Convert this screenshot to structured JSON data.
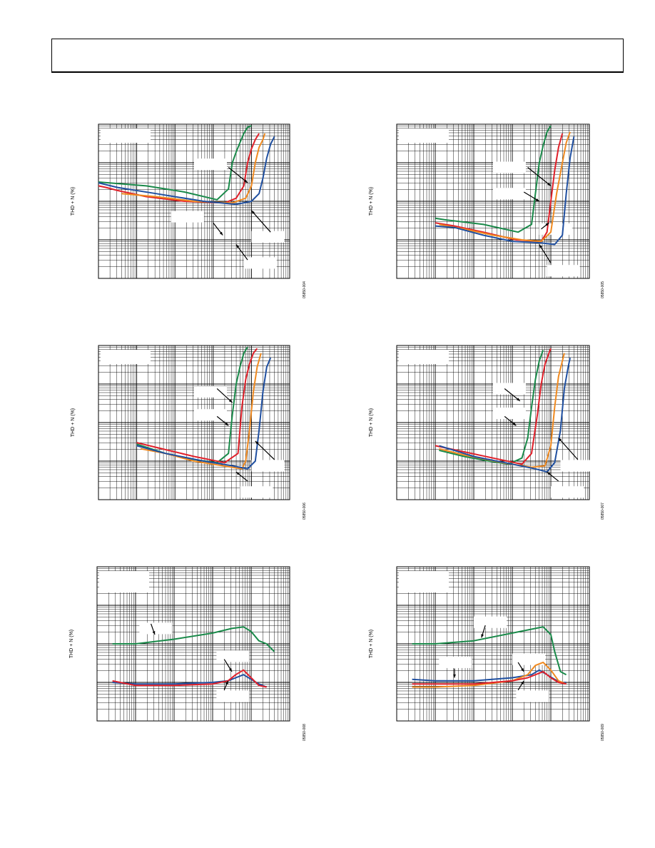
{
  "page": {
    "header": {
      "title": ""
    }
  },
  "colors": {
    "green": "#1a8a4a",
    "red": "#e0202a",
    "orange": "#f08a20",
    "blue": "#1f4fa0",
    "grid": "#000000"
  },
  "chart_data": [
    {
      "type": "line",
      "ylabel": "THD + N (%)",
      "fig_id": "05850-004",
      "xlog": true,
      "ylog": true,
      "grid": true,
      "series": [
        {
          "color": "green",
          "x": [
            0,
            0.25,
            0.45,
            0.62,
            0.68,
            0.7,
            0.72,
            0.74,
            0.76,
            0.78,
            0.8
          ],
          "y": [
            0.625,
            0.6,
            0.56,
            0.51,
            0.58,
            0.75,
            0.82,
            0.88,
            0.94,
            0.98,
            0.99
          ]
        },
        {
          "color": "red",
          "x": [
            0,
            0.04,
            0.1,
            0.25,
            0.45,
            0.66,
            0.72,
            0.76,
            0.78,
            0.8,
            0.82,
            0.84
          ],
          "y": [
            0.6,
            0.59,
            0.57,
            0.53,
            0.5,
            0.49,
            0.52,
            0.6,
            0.75,
            0.84,
            0.9,
            0.94
          ]
        },
        {
          "color": "orange",
          "x": [
            0.12,
            0.3,
            0.5,
            0.7,
            0.77,
            0.8,
            0.82,
            0.84,
            0.86,
            0.87
          ],
          "y": [
            0.55,
            0.53,
            0.5,
            0.49,
            0.52,
            0.6,
            0.75,
            0.85,
            0.9,
            0.94
          ]
        },
        {
          "color": "blue",
          "x": [
            0,
            0.1,
            0.3,
            0.55,
            0.72,
            0.8,
            0.84,
            0.86,
            0.88,
            0.9,
            0.92
          ],
          "y": [
            0.62,
            0.59,
            0.55,
            0.5,
            0.48,
            0.5,
            0.55,
            0.65,
            0.78,
            0.87,
            0.92
          ]
        }
      ],
      "label_boxes": [
        [
          0.5,
          0.74
        ],
        [
          0.38,
          0.4
        ],
        [
          0.8,
          0.27
        ],
        [
          0.76,
          0.1
        ]
      ],
      "arrows": [
        [
          0.68,
          0.72,
          0.78,
          0.62
        ],
        [
          0.6,
          0.36,
          0.65,
          0.28
        ],
        [
          0.9,
          0.3,
          0.8,
          0.44
        ],
        [
          0.78,
          0.12,
          0.72,
          0.22
        ]
      ]
    },
    {
      "type": "line",
      "ylabel": "THD + N (%)",
      "fig_id": "05850-005",
      "xlog": true,
      "ylog": true,
      "grid": true,
      "series": [
        {
          "color": "green",
          "x": [
            0.2,
            0.25,
            0.45,
            0.63,
            0.7,
            0.72,
            0.74,
            0.76,
            0.78,
            0.8
          ],
          "y": [
            0.39,
            0.38,
            0.35,
            0.3,
            0.35,
            0.55,
            0.75,
            0.86,
            0.95,
            0.99
          ]
        },
        {
          "color": "red",
          "x": [
            0.2,
            0.3,
            0.45,
            0.62,
            0.75,
            0.78,
            0.8,
            0.82,
            0.84,
            0.86
          ],
          "y": [
            0.36,
            0.34,
            0.3,
            0.25,
            0.24,
            0.3,
            0.5,
            0.7,
            0.85,
            0.94
          ]
        },
        {
          "color": "orange",
          "x": [
            0.22,
            0.35,
            0.5,
            0.65,
            0.75,
            0.8,
            0.83,
            0.86,
            0.88,
            0.9
          ],
          "y": [
            0.35,
            0.32,
            0.28,
            0.25,
            0.24,
            0.3,
            0.55,
            0.75,
            0.88,
            0.95
          ]
        },
        {
          "color": "blue",
          "x": [
            0.2,
            0.3,
            0.45,
            0.6,
            0.75,
            0.82,
            0.86,
            0.88,
            0.9,
            0.92
          ],
          "y": [
            0.34,
            0.33,
            0.28,
            0.24,
            0.23,
            0.22,
            0.28,
            0.55,
            0.78,
            0.92
          ]
        }
      ],
      "label_boxes": [
        [
          0.5,
          0.72
        ],
        [
          0.5,
          0.55
        ],
        [
          0.78,
          0.05
        ],
        [
          0.74,
          0.32
        ]
      ],
      "arrows": [
        [
          0.68,
          0.72,
          0.8,
          0.6
        ],
        [
          0.66,
          0.56,
          0.74,
          0.5
        ],
        [
          0.75,
          0.32,
          0.79,
          0.36
        ],
        [
          0.8,
          0.1,
          0.74,
          0.22
        ]
      ]
    },
    {
      "type": "line",
      "ylabel": "THD + N (%)",
      "fig_id": "05850-006",
      "xlog": true,
      "ylog": true,
      "grid": true,
      "series": [
        {
          "color": "green",
          "x": [
            0.2,
            0.35,
            0.5,
            0.62,
            0.68,
            0.7,
            0.72,
            0.74,
            0.76,
            0.78
          ],
          "y": [
            0.36,
            0.3,
            0.26,
            0.24,
            0.3,
            0.55,
            0.75,
            0.86,
            0.95,
            0.99
          ]
        },
        {
          "color": "red",
          "x": [
            0.2,
            0.3,
            0.5,
            0.66,
            0.73,
            0.75,
            0.77,
            0.79,
            0.81,
            0.83
          ],
          "y": [
            0.37,
            0.34,
            0.28,
            0.24,
            0.3,
            0.6,
            0.78,
            0.88,
            0.95,
            0.98
          ]
        },
        {
          "color": "orange",
          "x": [
            0.22,
            0.35,
            0.5,
            0.65,
            0.75,
            0.77,
            0.79,
            0.81,
            0.83,
            0.85
          ],
          "y": [
            0.33,
            0.3,
            0.25,
            0.22,
            0.2,
            0.25,
            0.45,
            0.7,
            0.86,
            0.95
          ]
        },
        {
          "color": "blue",
          "x": [
            0.2,
            0.35,
            0.55,
            0.7,
            0.78,
            0.82,
            0.84,
            0.86,
            0.88,
            0.9
          ],
          "y": [
            0.35,
            0.3,
            0.25,
            0.22,
            0.2,
            0.25,
            0.45,
            0.7,
            0.86,
            0.92
          ]
        }
      ],
      "label_boxes": [
        [
          0.5,
          0.7
        ],
        [
          0.5,
          0.55
        ],
        [
          0.8,
          0.22
        ],
        [
          0.74,
          0.05
        ]
      ],
      "arrows": [
        [
          0.62,
          0.72,
          0.7,
          0.63
        ],
        [
          0.62,
          0.54,
          0.68,
          0.48
        ],
        [
          0.92,
          0.26,
          0.82,
          0.38
        ],
        [
          0.78,
          0.12,
          0.72,
          0.18
        ]
      ]
    },
    {
      "type": "line",
      "ylabel": "THD + N (%)",
      "fig_id": "05850-007",
      "xlog": true,
      "ylog": true,
      "grid": true,
      "series": [
        {
          "color": "green",
          "x": [
            0.22,
            0.35,
            0.48,
            0.58,
            0.65,
            0.68,
            0.7,
            0.72,
            0.74,
            0.76
          ],
          "y": [
            0.32,
            0.28,
            0.25,
            0.23,
            0.27,
            0.4,
            0.6,
            0.78,
            0.9,
            0.97
          ]
        },
        {
          "color": "red",
          "x": [
            0.2,
            0.35,
            0.5,
            0.65,
            0.7,
            0.73,
            0.75,
            0.77,
            0.79,
            0.8
          ],
          "y": [
            0.35,
            0.31,
            0.27,
            0.23,
            0.3,
            0.55,
            0.75,
            0.88,
            0.95,
            0.98
          ]
        },
        {
          "color": "orange",
          "x": [
            0.22,
            0.35,
            0.55,
            0.7,
            0.77,
            0.8,
            0.82,
            0.84,
            0.86,
            0.87
          ],
          "y": [
            0.33,
            0.29,
            0.24,
            0.21,
            0.22,
            0.35,
            0.6,
            0.8,
            0.9,
            0.95
          ]
        },
        {
          "color": "blue",
          "x": [
            0.22,
            0.4,
            0.6,
            0.72,
            0.78,
            0.82,
            0.85,
            0.87,
            0.89,
            0.9
          ],
          "y": [
            0.35,
            0.28,
            0.23,
            0.2,
            0.18,
            0.24,
            0.45,
            0.72,
            0.86,
            0.92
          ]
        }
      ],
      "label_boxes": [
        [
          0.5,
          0.72
        ],
        [
          0.5,
          0.56
        ],
        [
          0.85,
          0.22
        ],
        [
          0.8,
          0.05
        ]
      ],
      "arrows": [
        [
          0.56,
          0.72,
          0.64,
          0.64
        ],
        [
          0.56,
          0.54,
          0.62,
          0.48
        ],
        [
          0.94,
          0.26,
          0.84,
          0.4
        ],
        [
          0.84,
          0.12,
          0.78,
          0.18
        ]
      ]
    },
    {
      "type": "line",
      "ylabel": "THD + N (%)",
      "fig_id": "05850-008",
      "xlog": true,
      "ylog": true,
      "grid": true,
      "series": [
        {
          "color": "green",
          "x": [
            0.08,
            0.2,
            0.4,
            0.6,
            0.7,
            0.76,
            0.8,
            0.84,
            0.88,
            0.92
          ],
          "y": [
            0.5,
            0.5,
            0.53,
            0.57,
            0.6,
            0.61,
            0.58,
            0.52,
            0.5,
            0.45
          ]
        },
        {
          "color": "blue",
          "x": [
            0.08,
            0.2,
            0.4,
            0.6,
            0.68,
            0.72,
            0.76,
            0.8,
            0.84,
            0.88
          ],
          "y": [
            0.25,
            0.24,
            0.24,
            0.25,
            0.26,
            0.28,
            0.3,
            0.27,
            0.24,
            0.22
          ]
        },
        {
          "color": "red",
          "x": [
            0.08,
            0.2,
            0.4,
            0.6,
            0.68,
            0.72,
            0.76,
            0.8,
            0.84,
            0.88
          ],
          "y": [
            0.26,
            0.23,
            0.23,
            0.24,
            0.26,
            0.3,
            0.33,
            0.28,
            0.23,
            0.22
          ]
        }
      ],
      "label_boxes": [
        [
          0.22,
          0.6
        ],
        [
          0.62,
          0.42
        ],
        [
          0.62,
          0.16
        ]
      ],
      "arrows": [
        [
          0.28,
          0.63,
          0.3,
          0.56
        ],
        [
          0.66,
          0.4,
          0.7,
          0.32
        ],
        [
          0.66,
          0.2,
          0.68,
          0.26
        ]
      ]
    },
    {
      "type": "line",
      "ylabel": "THD + N (%)",
      "fig_id": "05850-009",
      "xlog": true,
      "ylog": true,
      "grid": true,
      "series": [
        {
          "color": "green",
          "x": [
            0.08,
            0.2,
            0.4,
            0.6,
            0.72,
            0.76,
            0.8,
            0.82,
            0.85,
            0.88
          ],
          "y": [
            0.5,
            0.5,
            0.52,
            0.57,
            0.6,
            0.61,
            0.56,
            0.45,
            0.32,
            0.3
          ]
        },
        {
          "color": "blue",
          "x": [
            0.08,
            0.2,
            0.4,
            0.6,
            0.7,
            0.74,
            0.78,
            0.82,
            0.85,
            0.88
          ],
          "y": [
            0.27,
            0.26,
            0.26,
            0.28,
            0.3,
            0.33,
            0.3,
            0.27,
            0.25,
            0.25
          ]
        },
        {
          "color": "orange",
          "x": [
            0.08,
            0.2,
            0.4,
            0.6,
            0.68,
            0.72,
            0.76,
            0.8,
            0.84,
            0.88
          ],
          "y": [
            0.22,
            0.22,
            0.23,
            0.26,
            0.3,
            0.36,
            0.38,
            0.33,
            0.26,
            0.24
          ]
        },
        {
          "color": "red",
          "x": [
            0.08,
            0.2,
            0.4,
            0.6,
            0.68,
            0.72,
            0.76,
            0.8,
            0.84,
            0.88
          ],
          "y": [
            0.24,
            0.24,
            0.24,
            0.26,
            0.28,
            0.3,
            0.32,
            0.28,
            0.25,
            0.24
          ]
        }
      ],
      "label_boxes": [
        [
          0.4,
          0.64
        ],
        [
          0.22,
          0.38
        ],
        [
          0.6,
          0.4
        ],
        [
          0.62,
          0.16
        ]
      ],
      "arrows": [
        [
          0.46,
          0.62,
          0.44,
          0.54
        ],
        [
          0.3,
          0.34,
          0.3,
          0.28
        ],
        [
          0.63,
          0.38,
          0.66,
          0.32
        ],
        [
          0.63,
          0.2,
          0.66,
          0.26
        ]
      ]
    }
  ]
}
